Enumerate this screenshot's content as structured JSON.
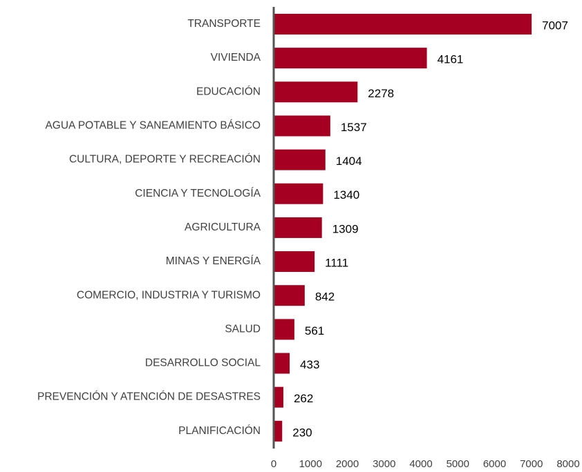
{
  "chart_data": {
    "type": "bar",
    "orientation": "horizontal",
    "categories": [
      "TRANSPORTE",
      "VIVIENDA",
      "EDUCACIÓN",
      "AGUA POTABLE Y SANEAMIENTO BÁSICO",
      "CULTURA, DEPORTE Y RECREACIÓN",
      "CIENCIA Y TECNOLOGÍA",
      "AGRICULTURA",
      "MINAS Y ENERGÍA",
      "COMERCIO, INDUSTRIA Y TURISMO",
      "SALUD",
      "DESARROLLO SOCIAL",
      "PREVENCIÓN Y ATENCIÓN DE DESASTRES",
      "PLANIFICACIÓN"
    ],
    "values": [
      7007,
      4161,
      2278,
      1537,
      1404,
      1340,
      1309,
      1111,
      842,
      561,
      433,
      262,
      230
    ],
    "color": "#a50021",
    "xlim": [
      0,
      8000
    ],
    "xticks": [
      0,
      1000,
      2000,
      3000,
      4000,
      5000,
      6000,
      7000,
      8000
    ],
    "grid": false
  }
}
